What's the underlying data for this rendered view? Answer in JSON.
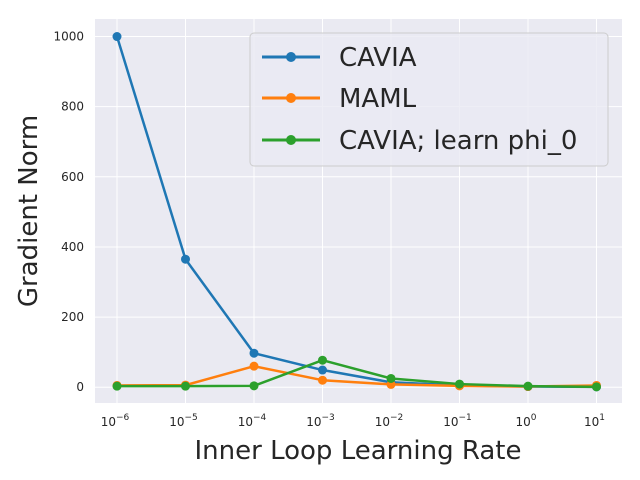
{
  "chart_data": {
    "type": "line",
    "title": "",
    "xlabel": "Inner Loop Learning Rate",
    "ylabel": "Gradient Norm",
    "x_exponents": [
      -6,
      -5,
      -4,
      -3,
      -2,
      -1,
      0,
      1
    ],
    "x_tick_base": "10",
    "y_ticks": [
      0,
      200,
      400,
      600,
      800,
      1000
    ],
    "y_tick_labels": [
      "0",
      "200",
      "400",
      "600",
      "800",
      "1000"
    ],
    "ylim": [
      -45,
      1050
    ],
    "grid": true,
    "legend_position": "top-right",
    "series": [
      {
        "name": "CAVIA",
        "color": "#1f77b4",
        "values": [
          1000,
          365,
          97,
          49,
          14,
          5,
          2,
          1
        ]
      },
      {
        "name": "MAML",
        "color": "#ff7f0e",
        "values": [
          5,
          6,
          60,
          20,
          8,
          4,
          2,
          5
        ]
      },
      {
        "name": "CAVIA; learn phi_0",
        "color": "#2ca02c",
        "values": [
          3,
          3,
          4,
          77,
          25,
          9,
          3,
          1
        ]
      }
    ]
  }
}
